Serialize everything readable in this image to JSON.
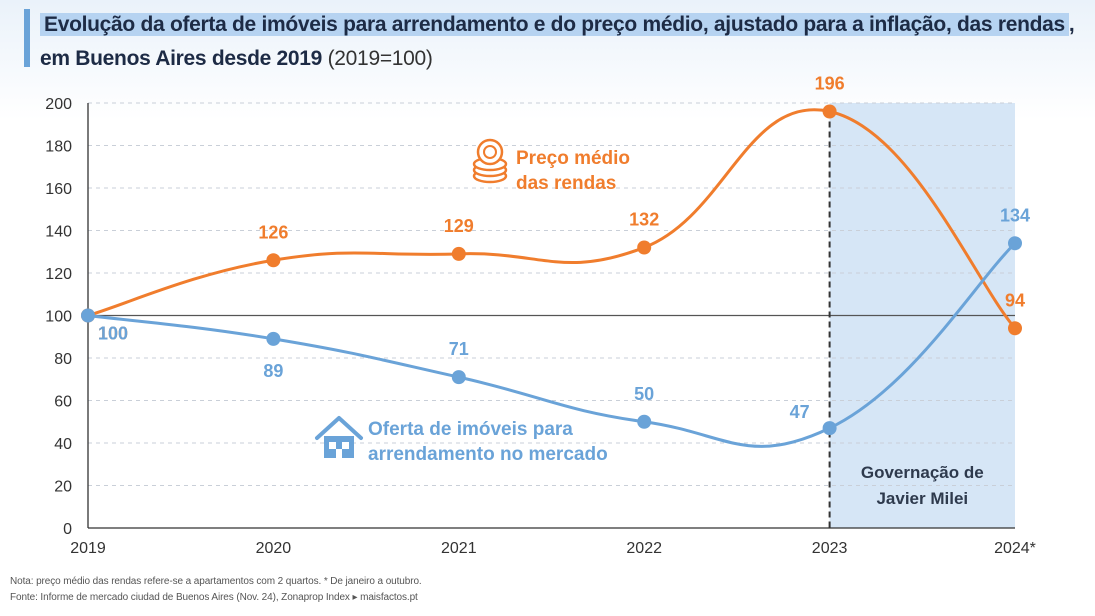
{
  "header": {
    "title": "Evolução da oferta de imóveis para arrendamento e do preço médio, ajustado para a inflação, das rendas",
    "title_comma": ",",
    "subtitle_bold": "em Buenos Aires desde 2019",
    "subtitle_light": "(2019=100)"
  },
  "chart_data": {
    "type": "line",
    "categories": [
      "2019",
      "2020",
      "2021",
      "2022",
      "2023",
      "2024*"
    ],
    "series": [
      {
        "name": "Preço médio das rendas",
        "name_lines": [
          "Preço médio",
          "das rendas"
        ],
        "values": [
          100,
          126,
          129,
          132,
          196,
          94
        ],
        "labels": [
          "100",
          "126",
          "129",
          "132",
          "196",
          "94"
        ],
        "color": "#f07d2d",
        "icon": "coins-icon"
      },
      {
        "name": "Oferta de imóveis para arrendamento no mercado",
        "name_lines": [
          "Oferta de imóveis para",
          "arrendamento no mercado"
        ],
        "values": [
          100,
          89,
          71,
          50,
          47,
          134
        ],
        "labels": [
          "100",
          "89",
          "71",
          "50",
          "47",
          "134"
        ],
        "color": "#6aa3d8",
        "icon": "house-icon"
      }
    ],
    "ylim": [
      0,
      200
    ],
    "yticks": [
      "0",
      "20",
      "40",
      "60",
      "80",
      "100",
      "120",
      "140",
      "160",
      "180",
      "200"
    ],
    "grid": true,
    "reference_line": 100,
    "shaded_region": {
      "from": "2023",
      "to": "2024*",
      "label_lines": [
        "Governação de",
        "Javier Milei"
      ],
      "color": "#d6e6f6"
    }
  },
  "footer": {
    "note": "Nota: preço médio das rendas refere-se a apartamentos com 2 quartos. * De janeiro a outubro.",
    "source": "Fonte: Informe de mercado ciudad de Buenos Aires (Nov. 24), Zonaprop Index ▸ maisfactos.pt"
  }
}
